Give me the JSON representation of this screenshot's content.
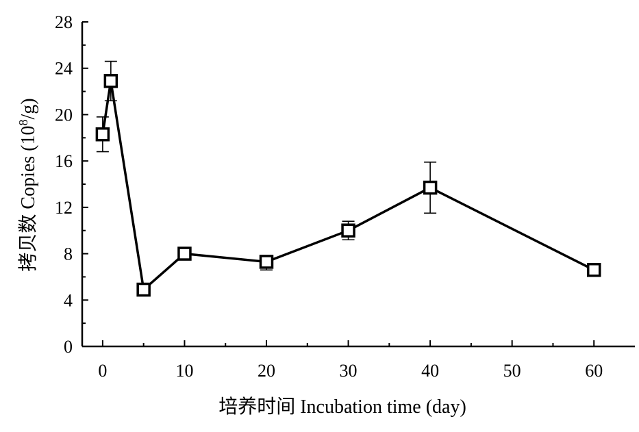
{
  "chart_data": {
    "type": "line",
    "xlabel": "培养时间  Incubation time (day)",
    "ylabel": {
      "prefix": "拷贝数  Copies (10",
      "sup": "8",
      "suffix": "/g)"
    },
    "xlim": [
      -2.5,
      65
    ],
    "ylim": [
      0,
      28
    ],
    "xticks": [
      0,
      10,
      20,
      30,
      40,
      50,
      60
    ],
    "yticks": [
      0,
      4,
      8,
      12,
      16,
      20,
      24,
      28
    ],
    "grid": false,
    "legend": "none",
    "series": [
      {
        "marker": "open-square",
        "color": "#000000",
        "points": [
          {
            "x": 0,
            "y": 18.3,
            "err_low": 1.5,
            "err_high": 1.5
          },
          {
            "x": 1,
            "y": 22.9,
            "err_low": 1.7,
            "err_high": 1.7
          },
          {
            "x": 5,
            "y": 4.9,
            "err_low": 0.3,
            "err_high": 0.3
          },
          {
            "x": 10,
            "y": 8.0,
            "err_low": 0.4,
            "err_high": 0.4
          },
          {
            "x": 20,
            "y": 7.3,
            "err_low": 0.7,
            "err_high": 0.5
          },
          {
            "x": 30,
            "y": 10.0,
            "err_low": 0.8,
            "err_high": 0.8
          },
          {
            "x": 40,
            "y": 13.7,
            "err_low": 2.2,
            "err_high": 2.2
          },
          {
            "x": 60,
            "y": 6.6,
            "err_low": 0.4,
            "err_high": 0.4
          }
        ]
      }
    ]
  }
}
